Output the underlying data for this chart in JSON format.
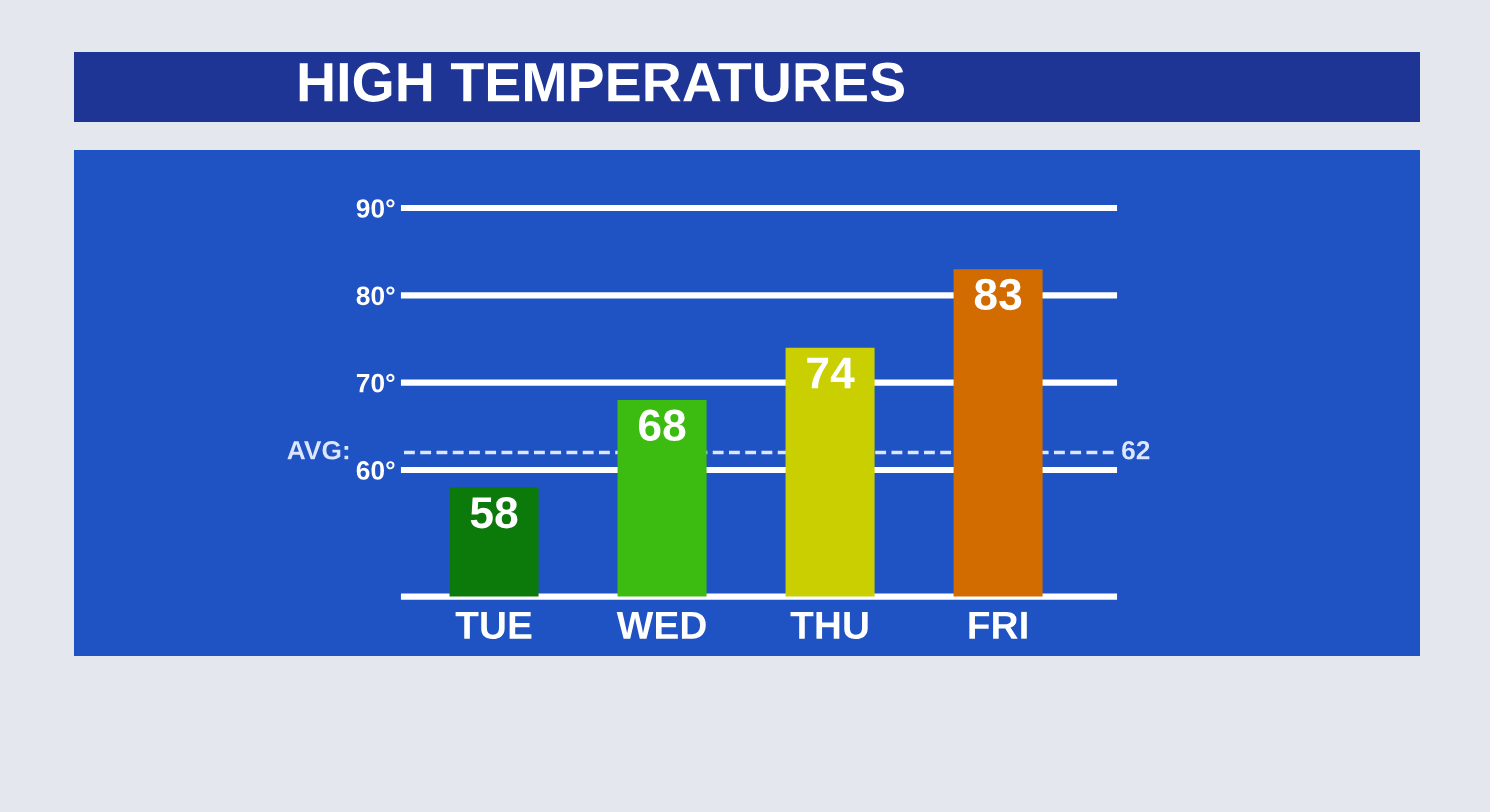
{
  "chart_data": {
    "type": "bar",
    "title": "HIGH TEMPERATURES",
    "categories": [
      "TUE",
      "WED",
      "THU",
      "FRI"
    ],
    "values": [
      58,
      68,
      74,
      83
    ],
    "colors": [
      "#0b7a0b",
      "#3cbc10",
      "#c9cf00",
      "#d26c00"
    ],
    "ylim": [
      45.5,
      90
    ],
    "yticks": [
      {
        "value": 60,
        "label": "60°"
      },
      {
        "value": 70,
        "label": "70°"
      },
      {
        "value": 80,
        "label": "80°"
      },
      {
        "value": 90,
        "label": "90°"
      }
    ],
    "grid": "y",
    "data_labels": true,
    "ref_lines": [
      {
        "axis": "y",
        "value": 62,
        "label": "62",
        "color": "#dce6ff",
        "line_style": "dashed"
      }
    ],
    "annotations": [
      "AVG:"
    ]
  }
}
